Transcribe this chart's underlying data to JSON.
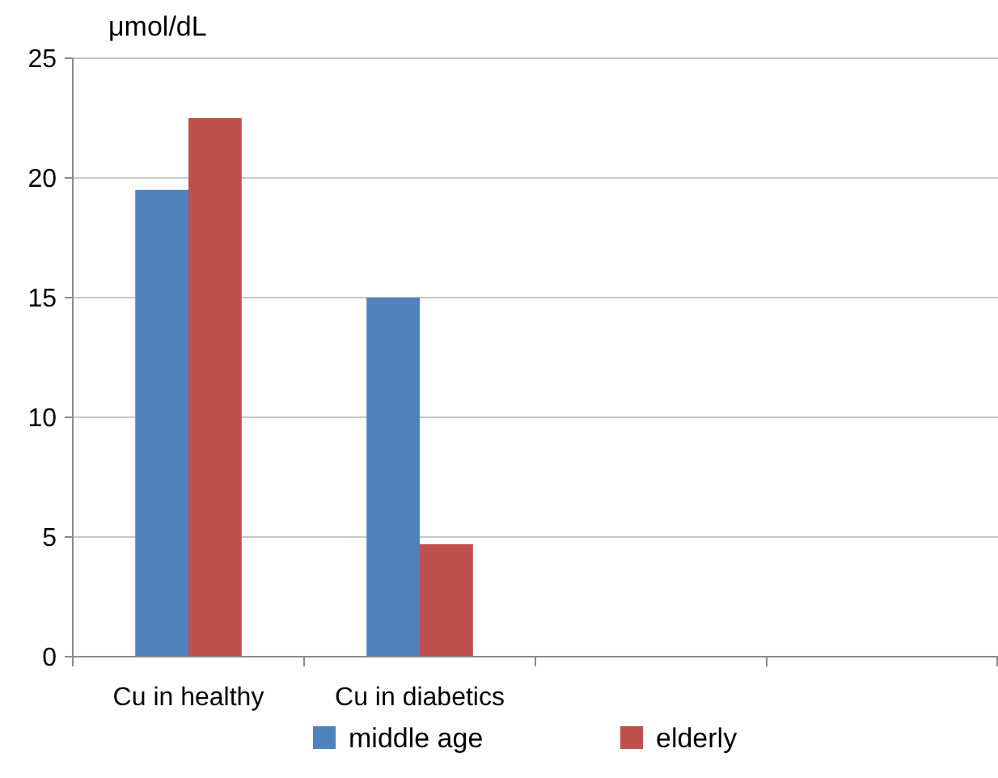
{
  "chart_data": {
    "type": "bar",
    "ylabel": "μmol/dL",
    "categories": [
      "Cu in healthy",
      "Cu in diabetics",
      null,
      null
    ],
    "series": [
      {
        "name": "middle age",
        "color": "#4f81bd",
        "values": [
          19.5,
          15,
          null,
          null
        ]
      },
      {
        "name": "elderly",
        "color": "#c0504d",
        "values": [
          22.5,
          4.7,
          null,
          null
        ]
      }
    ],
    "ylim": [
      0,
      25
    ],
    "yticks": [
      0,
      5,
      10,
      15,
      20,
      25
    ],
    "grid": "y",
    "legend": "bottom"
  }
}
